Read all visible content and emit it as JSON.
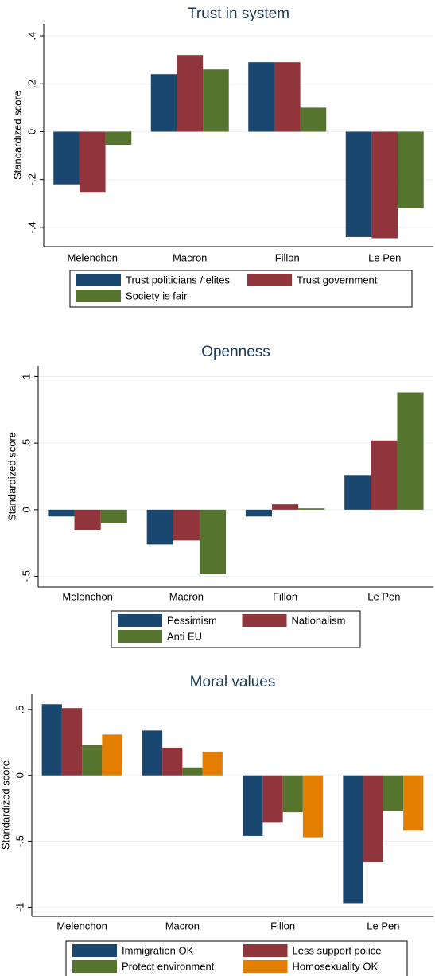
{
  "chart_data": [
    {
      "type": "bar",
      "title": "Trust in system",
      "y_label": "Standardized score",
      "categories": [
        "Melenchon",
        "Macron",
        "Fillon",
        "Le Pen"
      ],
      "series": [
        {
          "name": "Trust politicians / elites",
          "color": "#1a476f",
          "values": [
            -0.22,
            0.24,
            0.29,
            -0.44
          ]
        },
        {
          "name": "Trust government",
          "color": "#90353b",
          "values": [
            -0.255,
            0.32,
            0.29,
            -0.445
          ]
        },
        {
          "name": "Society is fair",
          "color": "#55752f",
          "values": [
            -0.055,
            0.26,
            0.1,
            -0.32
          ]
        }
      ],
      "ylim": [
        -0.48,
        0.45
      ],
      "yticks": [
        {
          "value": -0.4,
          "label": "-.4"
        },
        {
          "value": -0.2,
          "label": "-.2"
        },
        0,
        {
          "value": 0.2,
          "label": ".2"
        },
        {
          "value": 0.4,
          "label": ".4"
        }
      ],
      "grid": true
    },
    {
      "type": "bar",
      "title": "Openness",
      "y_label": "Standardized score",
      "categories": [
        "Melenchon",
        "Macron",
        "Fillon",
        "Le Pen"
      ],
      "series": [
        {
          "name": "Pessimism",
          "color": "#1a476f",
          "values": [
            -0.05,
            -0.26,
            -0.05,
            0.26
          ]
        },
        {
          "name": "Nationalism",
          "color": "#90353b",
          "values": [
            -0.15,
            -0.23,
            0.04,
            0.52
          ]
        },
        {
          "name": "Anti EU",
          "color": "#55752f",
          "values": [
            -0.1,
            -0.48,
            0.01,
            0.88
          ]
        }
      ],
      "ylim": [
        -0.58,
        1.08
      ],
      "yticks": [
        {
          "value": -0.5,
          "label": "-.5"
        },
        0,
        {
          "value": 0.5,
          "label": ".5"
        },
        1
      ],
      "grid": true
    },
    {
      "type": "bar",
      "title": "Moral values",
      "y_label": "Standardized score",
      "categories": [
        "Melenchon",
        "Macron",
        "Fillon",
        "Le Pen"
      ],
      "series": [
        {
          "name": "Immigration OK",
          "color": "#1a476f",
          "values": [
            0.54,
            0.34,
            -0.46,
            -0.97
          ]
        },
        {
          "name": "Less support police",
          "color": "#90353b",
          "values": [
            0.51,
            0.21,
            -0.36,
            -0.66
          ]
        },
        {
          "name": "Protect environment",
          "color": "#55752f",
          "values": [
            0.23,
            0.06,
            -0.28,
            -0.27
          ]
        },
        {
          "name": "Homosexuality OK",
          "color": "#e37e00",
          "values": [
            0.31,
            0.18,
            -0.47,
            -0.42
          ]
        }
      ],
      "ylim": [
        -1.07,
        0.62
      ],
      "yticks": [
        -1,
        {
          "value": -0.5,
          "label": "-.5"
        },
        0,
        {
          "value": 0.5,
          "label": ".5"
        }
      ],
      "grid": true
    }
  ]
}
